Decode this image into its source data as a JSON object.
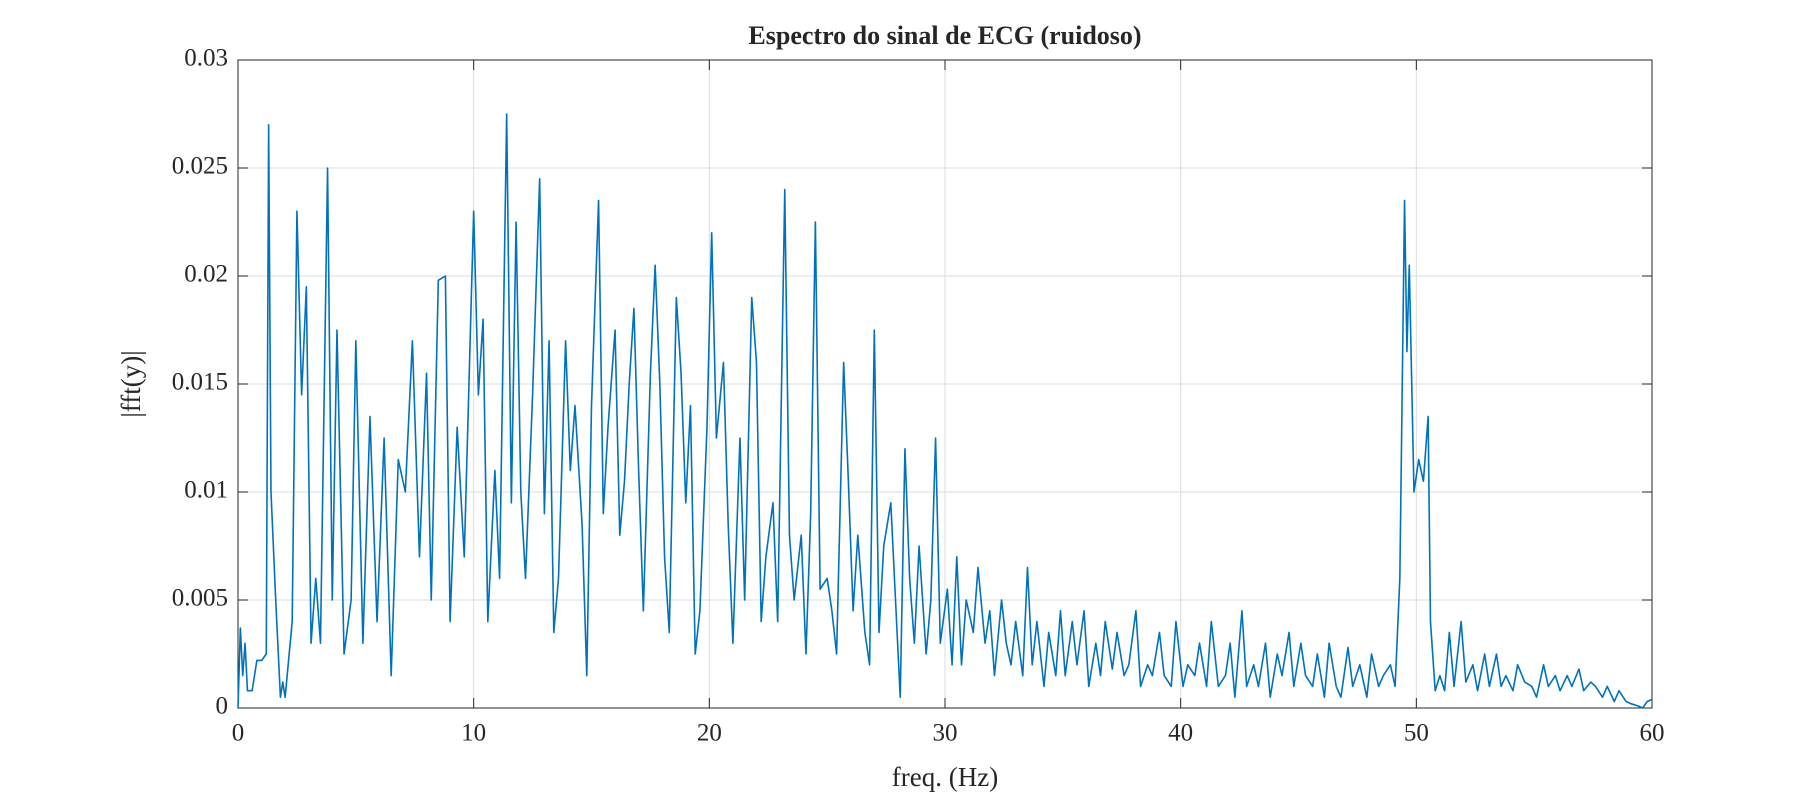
{
  "chart_data": {
    "type": "line",
    "title": "Espectro do sinal de ECG (ruidoso)",
    "x_label": "freq. (Hz)",
    "y_label": "|fft(y)|",
    "x": [
      0,
      0.1,
      0.2,
      0.3,
      0.4,
      0.6,
      0.8,
      1.0,
      1.2,
      1.3,
      1.4,
      1.6,
      1.8,
      1.9,
      2.0,
      2.3,
      2.5,
      2.7,
      2.9,
      3.1,
      3.3,
      3.5,
      3.8,
      4.0,
      4.2,
      4.5,
      4.8,
      5.0,
      5.3,
      5.6,
      5.9,
      6.2,
      6.5,
      6.8,
      7.1,
      7.4,
      7.7,
      8.0,
      8.2,
      8.5,
      8.8,
      9.0,
      9.3,
      9.6,
      10.0,
      10.2,
      10.4,
      10.6,
      10.9,
      11.1,
      11.4,
      11.6,
      11.8,
      12.0,
      12.2,
      12.5,
      12.8,
      13.0,
      13.2,
      13.4,
      13.6,
      13.9,
      14.1,
      14.3,
      14.6,
      14.8,
      15.0,
      15.3,
      15.5,
      15.7,
      16.0,
      16.2,
      16.4,
      16.6,
      16.8,
      17.0,
      17.2,
      17.5,
      17.7,
      17.9,
      18.1,
      18.3,
      18.6,
      18.8,
      19.0,
      19.2,
      19.4,
      19.6,
      19.9,
      20.1,
      20.3,
      20.6,
      20.8,
      21.0,
      21.3,
      21.5,
      21.8,
      22.0,
      22.2,
      22.4,
      22.7,
      22.9,
      23.2,
      23.4,
      23.6,
      23.9,
      24.1,
      24.3,
      24.5,
      24.7,
      25.0,
      25.2,
      25.4,
      25.7,
      25.9,
      26.1,
      26.3,
      26.6,
      26.8,
      27.0,
      27.2,
      27.4,
      27.7,
      27.9,
      28.1,
      28.3,
      28.5,
      28.7,
      28.9,
      29.2,
      29.4,
      29.6,
      29.8,
      30.1,
      30.3,
      30.5,
      30.7,
      30.9,
      31.2,
      31.4,
      31.7,
      31.9,
      32.1,
      32.4,
      32.6,
      32.8,
      33.0,
      33.3,
      33.5,
      33.7,
      33.9,
      34.2,
      34.4,
      34.7,
      34.9,
      35.1,
      35.4,
      35.6,
      35.9,
      36.1,
      36.4,
      36.6,
      36.8,
      37.1,
      37.3,
      37.6,
      37.8,
      38.1,
      38.3,
      38.6,
      38.8,
      39.1,
      39.3,
      39.6,
      39.8,
      40.1,
      40.3,
      40.6,
      40.8,
      41.1,
      41.3,
      41.6,
      41.9,
      42.1,
      42.3,
      42.6,
      42.8,
      43.1,
      43.3,
      43.6,
      43.8,
      44.1,
      44.3,
      44.6,
      44.8,
      45.1,
      45.3,
      45.6,
      45.8,
      46.1,
      46.3,
      46.6,
      46.8,
      47.1,
      47.3,
      47.6,
      47.9,
      48.1,
      48.4,
      48.6,
      48.9,
      49.1,
      49.3,
      49.5,
      49.6,
      49.7,
      49.9,
      50.1,
      50.3,
      50.5,
      50.6,
      50.8,
      51.0,
      51.2,
      51.4,
      51.6,
      51.9,
      52.1,
      52.4,
      52.6,
      52.9,
      53.1,
      53.4,
      53.6,
      53.8,
      54.1,
      54.3,
      54.6,
      54.9,
      55.1,
      55.4,
      55.6,
      55.9,
      56.1,
      56.4,
      56.6,
      56.9,
      57.1,
      57.4,
      57.6,
      57.9,
      58.1,
      58.4,
      58.6,
      58.9,
      59.1,
      59.4,
      59.6,
      59.8,
      60
    ],
    "series": [
      {
        "color": "#0072bd",
        "values": [
          0,
          0.0037,
          0.0015,
          0.003,
          0.0008,
          0.0008,
          0.0022,
          0.0022,
          0.0025,
          0.027,
          0.01,
          0.005,
          0.0005,
          0.0012,
          0.0005,
          0.004,
          0.023,
          0.0145,
          0.0195,
          0.003,
          0.006,
          0.003,
          0.025,
          0.005,
          0.0175,
          0.0025,
          0.005,
          0.017,
          0.003,
          0.0135,
          0.004,
          0.0125,
          0.0015,
          0.0115,
          0.01,
          0.017,
          0.007,
          0.0155,
          0.005,
          0.0198,
          0.02,
          0.004,
          0.013,
          0.007,
          0.023,
          0.0145,
          0.018,
          0.004,
          0.011,
          0.006,
          0.0275,
          0.0095,
          0.0225,
          0.01,
          0.006,
          0.0145,
          0.0245,
          0.009,
          0.017,
          0.0035,
          0.006,
          0.017,
          0.011,
          0.014,
          0.0085,
          0.0015,
          0.014,
          0.0235,
          0.009,
          0.013,
          0.0175,
          0.008,
          0.0105,
          0.015,
          0.0185,
          0.011,
          0.0045,
          0.0155,
          0.0205,
          0.015,
          0.007,
          0.0035,
          0.019,
          0.0155,
          0.0095,
          0.014,
          0.0025,
          0.0045,
          0.013,
          0.022,
          0.0125,
          0.016,
          0.0085,
          0.003,
          0.0125,
          0.005,
          0.019,
          0.016,
          0.004,
          0.007,
          0.0095,
          0.004,
          0.024,
          0.008,
          0.005,
          0.008,
          0.0025,
          0.009,
          0.0225,
          0.0055,
          0.006,
          0.0045,
          0.0025,
          0.016,
          0.0105,
          0.0045,
          0.008,
          0.0035,
          0.002,
          0.0175,
          0.0035,
          0.0075,
          0.0095,
          0.005,
          0.0005,
          0.012,
          0.006,
          0.003,
          0.0075,
          0.0025,
          0.005,
          0.0125,
          0.003,
          0.0055,
          0.002,
          0.007,
          0.002,
          0.005,
          0.0035,
          0.0065,
          0.003,
          0.0045,
          0.0015,
          0.005,
          0.003,
          0.002,
          0.004,
          0.0015,
          0.0065,
          0.002,
          0.004,
          0.001,
          0.0035,
          0.0015,
          0.0045,
          0.0015,
          0.004,
          0.002,
          0.0045,
          0.001,
          0.003,
          0.0015,
          0.004,
          0.0018,
          0.0035,
          0.0015,
          0.002,
          0.0045,
          0.001,
          0.002,
          0.0015,
          0.0035,
          0.0015,
          0.001,
          0.004,
          0.001,
          0.002,
          0.0015,
          0.003,
          0.001,
          0.004,
          0.001,
          0.0015,
          0.003,
          0.0005,
          0.0045,
          0.001,
          0.002,
          0.001,
          0.003,
          0.0005,
          0.0025,
          0.0015,
          0.0035,
          0.001,
          0.003,
          0.0015,
          0.001,
          0.0025,
          0.0005,
          0.003,
          0.001,
          0.0005,
          0.0028,
          0.001,
          0.002,
          0.0005,
          0.0025,
          0.001,
          0.0015,
          0.002,
          0.001,
          0.006,
          0.0235,
          0.0165,
          0.0205,
          0.01,
          0.0115,
          0.0105,
          0.0135,
          0.004,
          0.0008,
          0.0015,
          0.0008,
          0.0035,
          0.001,
          0.004,
          0.0012,
          0.002,
          0.0008,
          0.0025,
          0.001,
          0.0025,
          0.001,
          0.0015,
          0.0008,
          0.002,
          0.0012,
          0.001,
          0.0005,
          0.002,
          0.001,
          0.0015,
          0.0008,
          0.0015,
          0.001,
          0.0018,
          0.0008,
          0.0012,
          0.001,
          0.0005,
          0.001,
          0.0003,
          0.0008,
          0.0003,
          0.0002,
          0.0001,
          0,
          0.0003,
          0.0004
        ]
      }
    ],
    "xlim": [
      0,
      60
    ],
    "xticks": [
      0,
      10,
      20,
      30,
      40,
      50,
      60
    ],
    "ylim": [
      0,
      0.03
    ],
    "yticks": [
      0,
      0.005,
      0.01,
      0.015,
      0.02,
      0.025,
      0.03
    ],
    "grid": true
  }
}
